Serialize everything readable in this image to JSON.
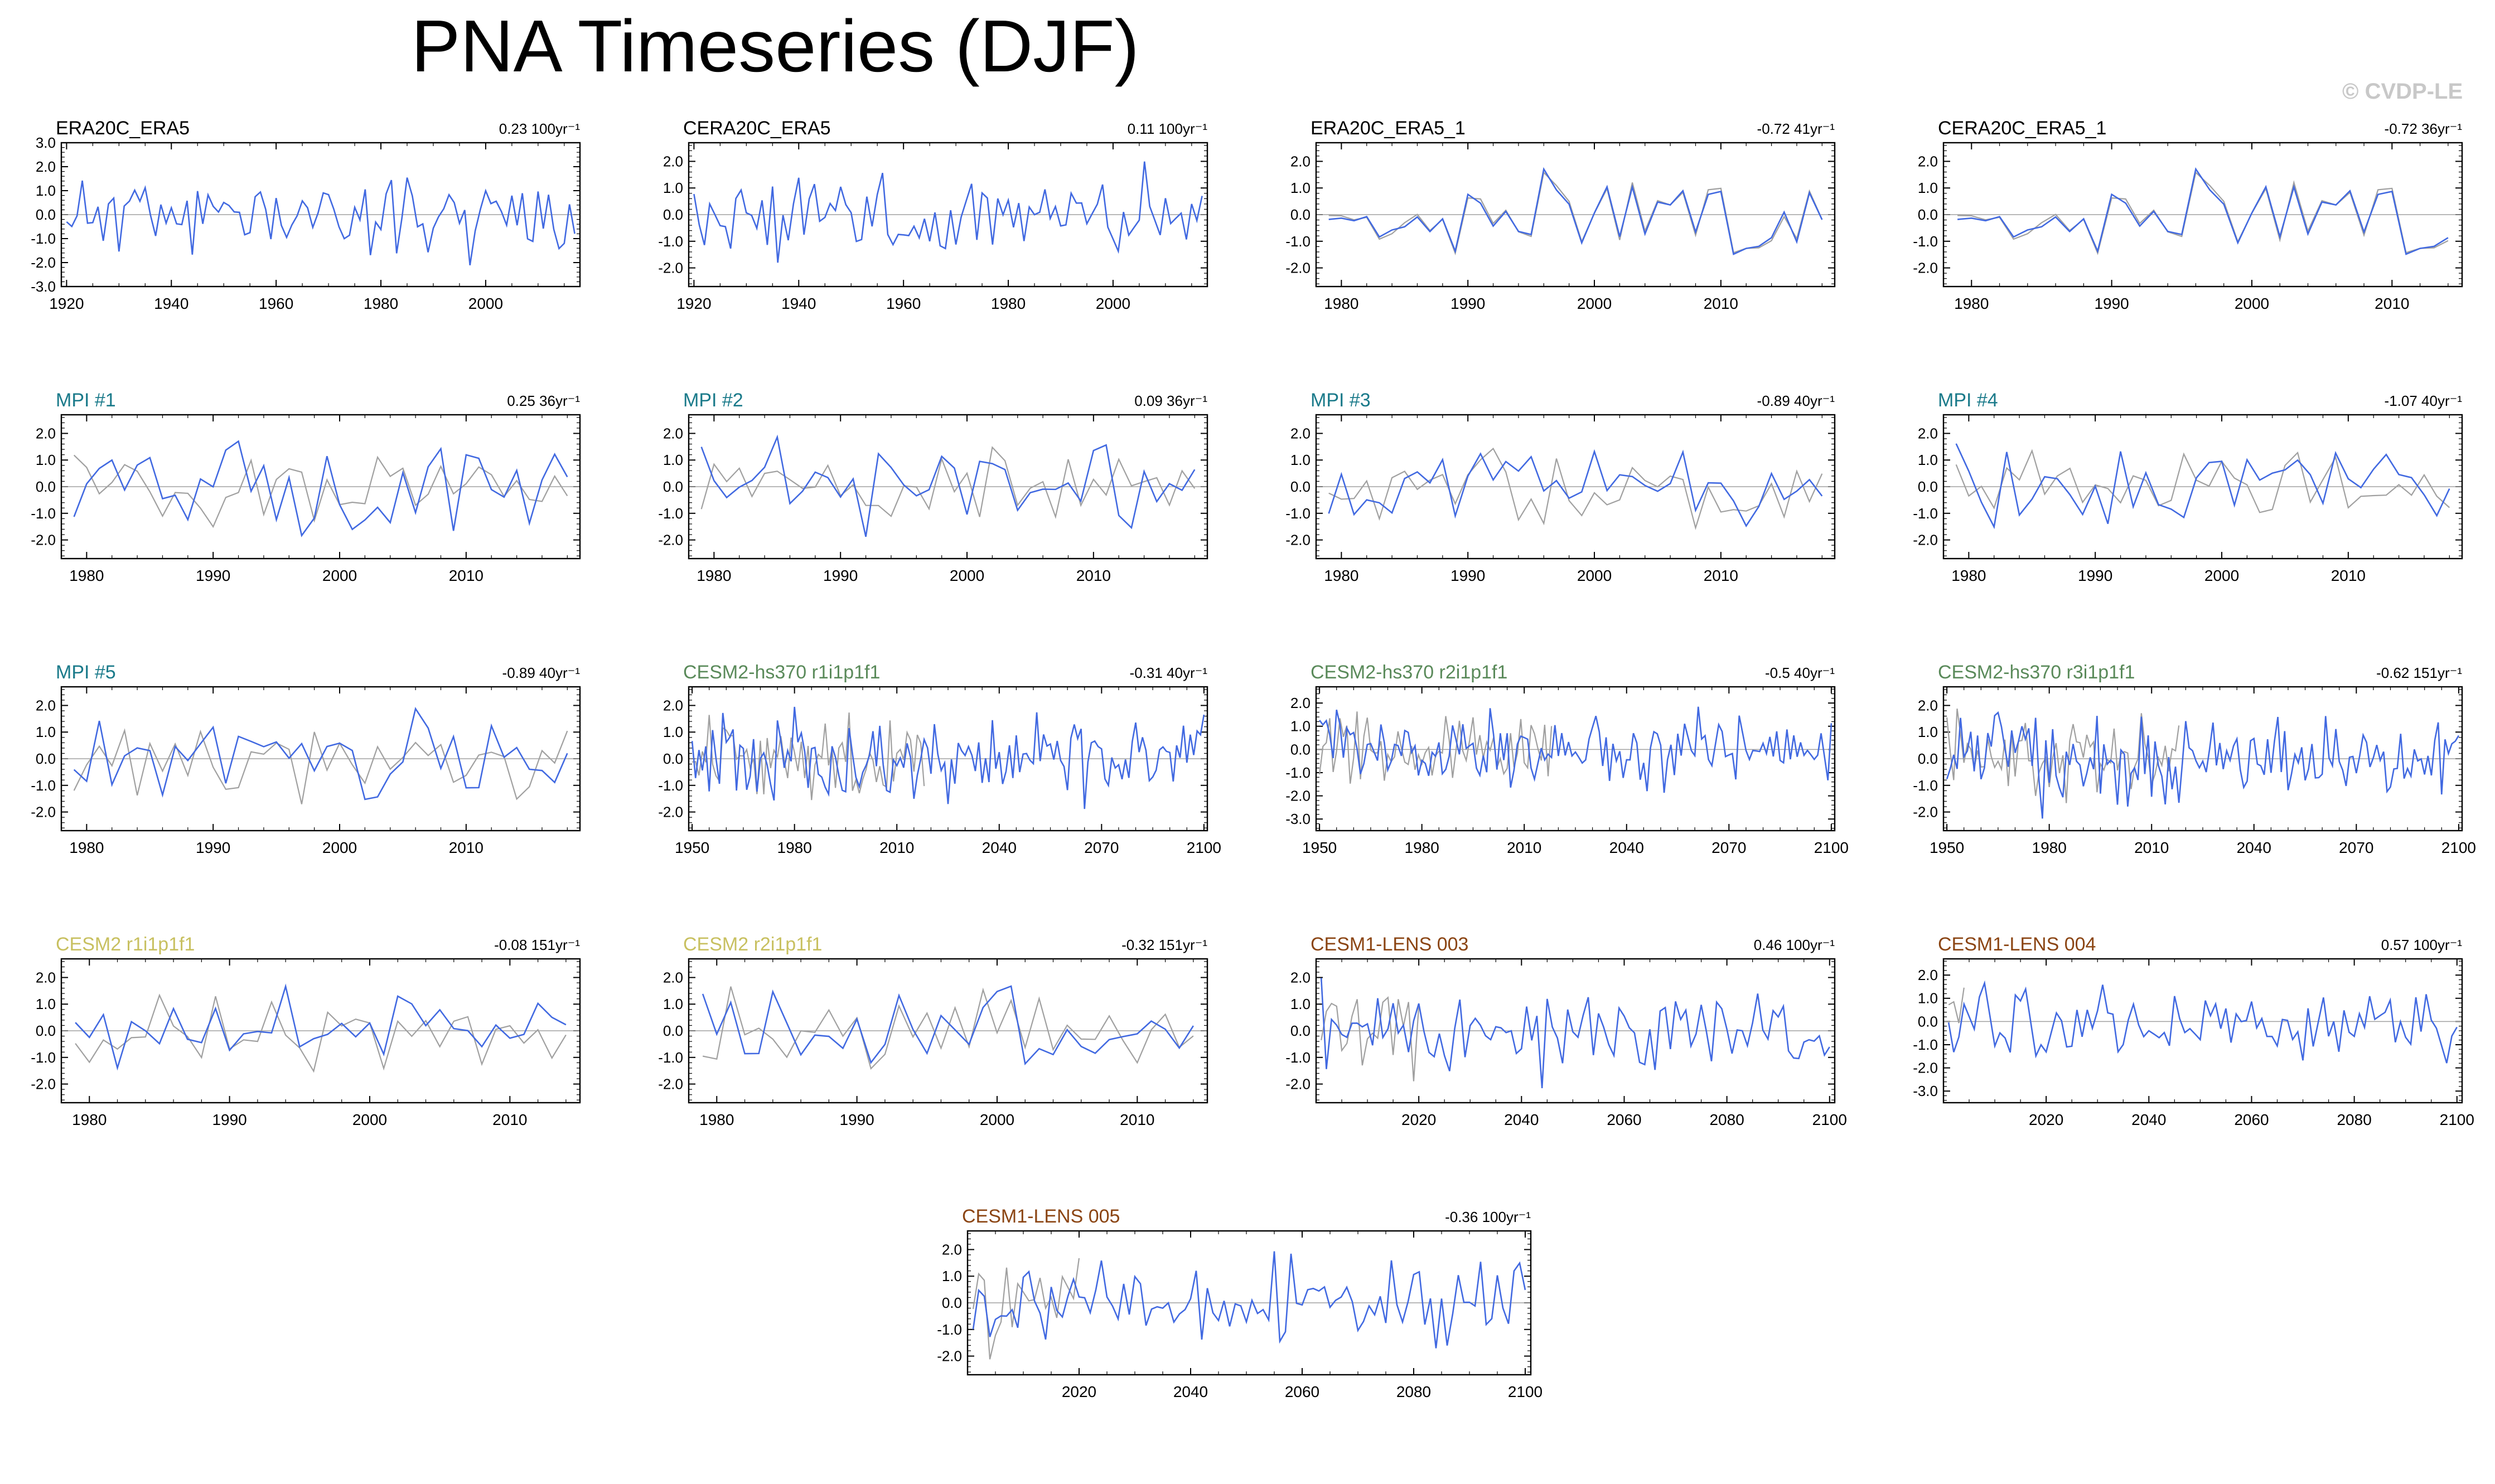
{
  "title": "PNA Timeseries (DJF)",
  "watermark": "© CVDP-LE",
  "colors": {
    "model_line": "#4169e1",
    "obs_line": "#a0a0a0",
    "zero_line": "#a0a0a0"
  },
  "chart_data": [
    {
      "type": "line",
      "title": "ERA20C_ERA5",
      "title_color": "#000000",
      "trend": "0.23 100yr⁻¹",
      "xlim": [
        1919,
        2018
      ],
      "ylim": [
        -3,
        3
      ],
      "yticks": [
        "3.0",
        "2.0",
        "1.0",
        "0.0",
        "-1.0",
        "-2.0",
        "-3.0"
      ],
      "xticks": [
        "1920",
        "1940",
        "1960",
        "1980",
        "2000"
      ],
      "x_start": 1920,
      "x_end": 2017,
      "seed": 11,
      "obs": false,
      "amp": 1.0
    },
    {
      "type": "line",
      "title": "CERA20C_ERA5",
      "title_color": "#000000",
      "trend": "0.11 100yr⁻¹",
      "xlim": [
        1919,
        2018
      ],
      "ylim": [
        -2.7,
        2.7
      ],
      "yticks": [
        "2.0",
        "1.0",
        "0.0",
        "-1.0",
        "-2.0"
      ],
      "xticks": [
        "1920",
        "1940",
        "1960",
        "1980",
        "2000"
      ],
      "x_start": 1920,
      "x_end": 2017,
      "seed": 13,
      "obs": false,
      "amp": 1.0
    },
    {
      "type": "line",
      "title": "ERA20C_ERA5_1",
      "title_color": "#000000",
      "trend": "-0.72 41yr⁻¹",
      "xlim": [
        1978,
        2019
      ],
      "ylim": [
        -2.7,
        2.7
      ],
      "yticks": [
        "2.0",
        "1.0",
        "0.0",
        "-1.0",
        "-2.0"
      ],
      "xticks": [
        "1980",
        "1990",
        "2000",
        "2010"
      ],
      "x_start": 1979,
      "x_end": 2018,
      "seed": 17,
      "obs": true,
      "obs_close": true,
      "amp": 1.0
    },
    {
      "type": "line",
      "title": "CERA20C_ERA5_1",
      "title_color": "#000000",
      "trend": "-0.72 36yr⁻¹",
      "xlim": [
        1978,
        2015
      ],
      "ylim": [
        -2.7,
        2.7
      ],
      "yticks": [
        "2.0",
        "1.0",
        "0.0",
        "-1.0",
        "-2.0"
      ],
      "xticks": [
        "1980",
        "1990",
        "2000",
        "2010"
      ],
      "x_start": 1979,
      "x_end": 2014,
      "seed": 17,
      "obs": true,
      "obs_close": true,
      "amp": 1.0
    },
    {
      "type": "line",
      "title": "MPI #1",
      "title_color": "#1a7a8a",
      "trend": "0.25 36yr⁻¹",
      "xlim": [
        1978,
        2019
      ],
      "ylim": [
        -2.7,
        2.7
      ],
      "yticks": [
        "2.0",
        "1.0",
        "0.0",
        "-1.0",
        "-2.0"
      ],
      "xticks": [
        "1980",
        "1990",
        "2000",
        "2010"
      ],
      "x_start": 1979,
      "x_end": 2018,
      "seed": 21,
      "obs": true,
      "amp": 1.0
    },
    {
      "type": "line",
      "title": "MPI #2",
      "title_color": "#1a7a8a",
      "trend": "0.09 36yr⁻¹",
      "xlim": [
        1978,
        2019
      ],
      "ylim": [
        -2.7,
        2.7
      ],
      "yticks": [
        "2.0",
        "1.0",
        "0.0",
        "-1.0",
        "-2.0"
      ],
      "xticks": [
        "1980",
        "1990",
        "2000",
        "2010"
      ],
      "x_start": 1979,
      "x_end": 2018,
      "seed": 23,
      "obs": true,
      "amp": 1.0
    },
    {
      "type": "line",
      "title": "MPI #3",
      "title_color": "#1a7a8a",
      "trend": "-0.89 40yr⁻¹",
      "xlim": [
        1978,
        2019
      ],
      "ylim": [
        -2.7,
        2.7
      ],
      "yticks": [
        "2.0",
        "1.0",
        "0.0",
        "-1.0",
        "-2.0"
      ],
      "xticks": [
        "1980",
        "1990",
        "2000",
        "2010"
      ],
      "x_start": 1979,
      "x_end": 2018,
      "seed": 27,
      "obs": true,
      "amp": 1.0
    },
    {
      "type": "line",
      "title": "MPI #4",
      "title_color": "#1a7a8a",
      "trend": "-1.07 40yr⁻¹",
      "xlim": [
        1978,
        2019
      ],
      "ylim": [
        -2.7,
        2.7
      ],
      "yticks": [
        "2.0",
        "1.0",
        "0.0",
        "-1.0",
        "-2.0"
      ],
      "xticks": [
        "1980",
        "1990",
        "2000",
        "2010"
      ],
      "x_start": 1979,
      "x_end": 2018,
      "seed": 29,
      "obs": true,
      "amp": 1.0
    },
    {
      "type": "line",
      "title": "MPI #5",
      "title_color": "#1a7a8a",
      "trend": "-0.89 40yr⁻¹",
      "xlim": [
        1978,
        2019
      ],
      "ylim": [
        -2.7,
        2.7
      ],
      "yticks": [
        "2.0",
        "1.0",
        "0.0",
        "-1.0",
        "-2.0"
      ],
      "xticks": [
        "1980",
        "1990",
        "2000",
        "2010"
      ],
      "x_start": 1979,
      "x_end": 2018,
      "seed": 31,
      "obs": true,
      "amp": 1.0
    },
    {
      "type": "line",
      "title": "CESM2-hs370 r1i1p1f1",
      "title_color": "#5a8a5a",
      "trend": "-0.31 40yr⁻¹",
      "xlim": [
        1949,
        2101
      ],
      "ylim": [
        -2.7,
        2.7
      ],
      "yticks": [
        "2.0",
        "1.0",
        "0.0",
        "-1.0",
        "-2.0"
      ],
      "xticks": [
        "1950",
        "1980",
        "2010",
        "2040",
        "2070",
        "2100"
      ],
      "x_start": 1950,
      "x_end": 2100,
      "seed": 33,
      "obs": true,
      "amp": 1.0
    },
    {
      "type": "line",
      "title": "CESM2-hs370 r2i1p1f1",
      "title_color": "#5a8a5a",
      "trend": "-0.5 40yr⁻¹",
      "xlim": [
        1949,
        2101
      ],
      "ylim": [
        -3.5,
        2.7
      ],
      "yticks": [
        "2.0",
        "1.0",
        "0.0",
        "-1.0",
        "-2.0",
        "-3.0"
      ],
      "xticks": [
        "1950",
        "1980",
        "2010",
        "2040",
        "2070",
        "2100"
      ],
      "x_start": 1950,
      "x_end": 2100,
      "seed": 37,
      "obs": true,
      "amp": 1.0
    },
    {
      "type": "line",
      "title": "CESM2-hs370 r3i1p1f1",
      "title_color": "#5a8a5a",
      "trend": "-0.62 151yr⁻¹",
      "xlim": [
        1949,
        2101
      ],
      "ylim": [
        -2.7,
        2.7
      ],
      "yticks": [
        "2.0",
        "1.0",
        "0.0",
        "-1.0",
        "-2.0"
      ],
      "xticks": [
        "1950",
        "1980",
        "2010",
        "2040",
        "2070",
        "2100"
      ],
      "x_start": 1950,
      "x_end": 2100,
      "seed": 39,
      "obs": true,
      "amp": 1.0
    },
    {
      "type": "line",
      "title": "CESM2 r1i1p1f1",
      "title_color": "#c8c060",
      "trend": "-0.08 151yr⁻¹",
      "xlim": [
        1978,
        2015
      ],
      "ylim": [
        -2.7,
        2.7
      ],
      "yticks": [
        "2.0",
        "1.0",
        "0.0",
        "-1.0",
        "-2.0"
      ],
      "xticks": [
        "1980",
        "1990",
        "2000",
        "2010"
      ],
      "x_start": 1979,
      "x_end": 2014,
      "seed": 41,
      "obs": true,
      "amp": 1.0
    },
    {
      "type": "line",
      "title": "CESM2 r2i1p1f1",
      "title_color": "#c8c060",
      "trend": "-0.32 151yr⁻¹",
      "xlim": [
        1978,
        2015
      ],
      "ylim": [
        -2.7,
        2.7
      ],
      "yticks": [
        "2.0",
        "1.0",
        "0.0",
        "-1.0",
        "-2.0"
      ],
      "xticks": [
        "1980",
        "1990",
        "2000",
        "2010"
      ],
      "x_start": 1979,
      "x_end": 2014,
      "seed": 43,
      "obs": true,
      "amp": 1.0
    },
    {
      "type": "line",
      "title": "CESM1-LENS 003",
      "title_color": "#8b4513",
      "trend": "0.46 100yr⁻¹",
      "xlim": [
        2000,
        2101
      ],
      "ylim": [
        -2.7,
        2.7
      ],
      "yticks": [
        "2.0",
        "1.0",
        "0.0",
        "-1.0",
        "-2.0"
      ],
      "xticks": [
        "2020",
        "2040",
        "2060",
        "2080",
        "2100"
      ],
      "x_start": 2001,
      "x_end": 2100,
      "seed": 47,
      "obs": true,
      "obs_end": 2020,
      "amp": 1.0
    },
    {
      "type": "line",
      "title": "CESM1-LENS 004",
      "title_color": "#8b4513",
      "trend": "0.57 100yr⁻¹",
      "xlim": [
        2000,
        2101
      ],
      "ylim": [
        -3.5,
        2.7
      ],
      "yticks": [
        "2.0",
        "1.0",
        "0.0",
        "-1.0",
        "-2.0",
        "-3.0"
      ],
      "xticks": [
        "2020",
        "2040",
        "2060",
        "2080",
        "2100"
      ],
      "x_start": 2001,
      "x_end": 2100,
      "seed": 49,
      "obs": true,
      "obs_end": 2004,
      "amp": 1.0
    },
    {
      "type": "line",
      "title": "CESM1-LENS 005",
      "title_color": "#8b4513",
      "trend": "-0.36 100yr⁻¹",
      "xlim": [
        2000,
        2101
      ],
      "ylim": [
        -2.7,
        2.7
      ],
      "yticks": [
        "2.0",
        "1.0",
        "0.0",
        "-1.0",
        "-2.0"
      ],
      "xticks": [
        "2020",
        "2040",
        "2060",
        "2080",
        "2100"
      ],
      "x_start": 2001,
      "x_end": 2100,
      "seed": 53,
      "obs": true,
      "obs_end": 2020,
      "amp": 1.0
    }
  ]
}
